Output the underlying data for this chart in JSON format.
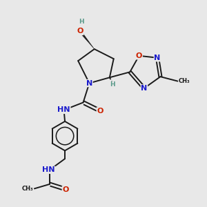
{
  "bg_color": "#e8e8e8",
  "bond_color": "#1a1a1a",
  "N_color": "#1a1acc",
  "O_color": "#cc2200",
  "H_color": "#5a9a8a",
  "C_color": "#1a1a1a",
  "figsize": [
    3.0,
    3.0
  ],
  "dpi": 100,
  "xlim": [
    0,
    10
  ],
  "ylim": [
    0,
    10
  ],
  "lw": 1.4,
  "fs": 8.0,
  "fs_small": 6.5
}
